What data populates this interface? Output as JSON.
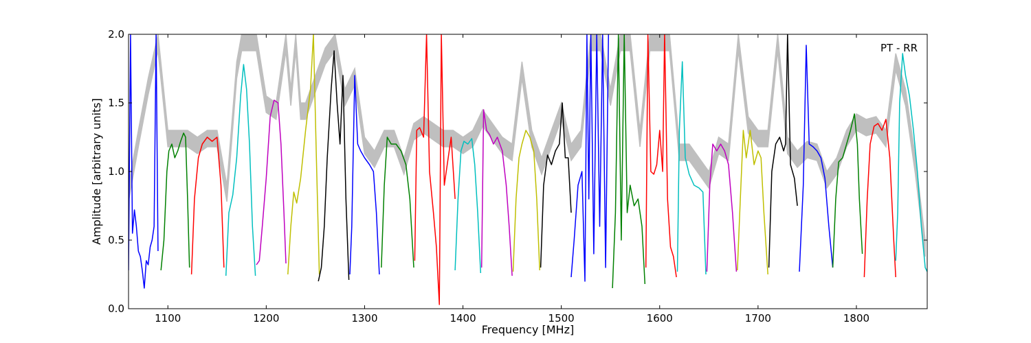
{
  "chart_data": {
    "type": "line",
    "title": "",
    "xlabel": "Frequency [MHz]",
    "ylabel": "Amplitude [arbitrary units]",
    "annotation": "PT - RR",
    "annotation_position": "top-right",
    "xlim": [
      1060,
      1872
    ],
    "ylim": [
      0.0,
      2.0
    ],
    "xticks": [
      1100,
      1200,
      1300,
      1400,
      1500,
      1600,
      1700,
      1800
    ],
    "yticks": [
      0.0,
      0.5,
      1.0,
      1.5,
      2.0
    ],
    "xtick_labels": [
      "1100",
      "1200",
      "1300",
      "1400",
      "1500",
      "1600",
      "1700",
      "1800"
    ],
    "ytick_labels": [
      "0.0",
      "0.5",
      "1.0",
      "1.5",
      "2.0"
    ],
    "grid": false,
    "legend": "none",
    "background_band_color": "#bfbfbf",
    "series": [
      {
        "color": "#0000ff",
        "x": [
          1060,
          1062,
          1064,
          1066,
          1068,
          1070,
          1072,
          1074,
          1076,
          1078,
          1080,
          1082,
          1084,
          1086,
          1088,
          1090
        ],
        "y": [
          0.28,
          2.0,
          0.55,
          0.72,
          0.6,
          0.42,
          0.38,
          0.28,
          0.15,
          0.35,
          0.32,
          0.45,
          0.5,
          0.6,
          2.0,
          0.42
        ]
      },
      {
        "color": "#008000",
        "x": [
          1093,
          1096,
          1099,
          1101,
          1104,
          1107,
          1110,
          1113,
          1116,
          1118,
          1120,
          1122
        ],
        "y": [
          0.28,
          0.5,
          1.0,
          1.15,
          1.2,
          1.1,
          1.15,
          1.22,
          1.28,
          1.25,
          0.8,
          0.3
        ]
      },
      {
        "color": "#ff0000",
        "x": [
          1124,
          1127,
          1131,
          1135,
          1140,
          1145,
          1150,
          1154,
          1157
        ],
        "y": [
          0.25,
          0.8,
          1.1,
          1.2,
          1.25,
          1.22,
          1.25,
          0.9,
          0.3
        ]
      },
      {
        "color": "#00bfbf",
        "x": [
          1159,
          1162,
          1166,
          1170,
          1174,
          1177,
          1180,
          1183,
          1186,
          1189
        ],
        "y": [
          0.24,
          0.7,
          0.83,
          1.1,
          1.55,
          1.78,
          1.6,
          1.2,
          0.6,
          0.24
        ]
      },
      {
        "color": "#bf00bf",
        "x": [
          1190,
          1193,
          1196,
          1200,
          1204,
          1208,
          1212,
          1215,
          1218,
          1220
        ],
        "y": [
          0.32,
          0.35,
          0.6,
          0.95,
          1.4,
          1.52,
          1.5,
          1.2,
          0.7,
          0.33
        ]
      },
      {
        "color": "#bfbf00",
        "x": [
          1222,
          1225,
          1228,
          1231,
          1235,
          1240,
          1245,
          1248,
          1251,
          1254
        ],
        "y": [
          0.25,
          0.6,
          0.85,
          0.77,
          0.95,
          1.3,
          1.6,
          2.0,
          1.1,
          0.25
        ]
      },
      {
        "color": "#000000",
        "x": [
          1253,
          1256,
          1259,
          1262,
          1266,
          1269,
          1272,
          1275,
          1278,
          1281,
          1284
        ],
        "y": [
          0.2,
          0.3,
          0.6,
          1.1,
          1.6,
          1.88,
          1.5,
          1.2,
          1.7,
          0.8,
          0.21
        ]
      },
      {
        "color": "#0000ff",
        "x": [
          1285,
          1287,
          1290,
          1293,
          1296,
          1300,
          1305,
          1309,
          1312,
          1315
        ],
        "y": [
          0.25,
          0.6,
          1.7,
          1.2,
          1.15,
          1.1,
          1.05,
          1.0,
          0.7,
          0.25
        ]
      },
      {
        "color": "#008000",
        "x": [
          1317,
          1320,
          1323,
          1327,
          1332,
          1337,
          1342,
          1346,
          1350
        ],
        "y": [
          0.3,
          0.9,
          1.25,
          1.2,
          1.2,
          1.15,
          1.05,
          0.8,
          0.3
        ]
      },
      {
        "color": "#ff0000",
        "x": [
          1351,
          1353,
          1356,
          1360,
          1363,
          1366,
          1370,
          1373,
          1376,
          1378,
          1381,
          1385,
          1388,
          1392
        ],
        "y": [
          0.35,
          1.3,
          1.32,
          1.25,
          2.0,
          1.0,
          0.7,
          0.45,
          0.03,
          2.0,
          0.9,
          1.1,
          1.25,
          0.8
        ]
      },
      {
        "color": "#00bfbf",
        "x": [
          1392,
          1395,
          1398,
          1401,
          1405,
          1409,
          1412,
          1415,
          1418
        ],
        "y": [
          0.28,
          0.8,
          1.15,
          1.22,
          1.2,
          1.24,
          1.05,
          0.7,
          0.26
        ]
      },
      {
        "color": "#bf00bf",
        "x": [
          1419,
          1421,
          1424,
          1427,
          1431,
          1435,
          1440,
          1444,
          1447,
          1450
        ],
        "y": [
          0.3,
          1.45,
          1.3,
          1.27,
          1.2,
          1.25,
          1.15,
          0.9,
          0.6,
          0.24
        ]
      },
      {
        "color": "#bfbf00",
        "x": [
          1451,
          1454,
          1457,
          1460,
          1464,
          1468,
          1472,
          1475,
          1478
        ],
        "y": [
          0.27,
          0.8,
          1.1,
          1.2,
          1.3,
          1.25,
          1.15,
          0.8,
          0.28
        ]
      },
      {
        "color": "#000000",
        "x": [
          1479,
          1482,
          1486,
          1490,
          1494,
          1498,
          1501,
          1504,
          1507,
          1510
        ],
        "y": [
          0.3,
          0.9,
          1.12,
          1.05,
          1.15,
          1.2,
          1.5,
          1.1,
          1.1,
          0.7
        ]
      },
      {
        "color": "#0000ff",
        "x": [
          1510,
          1513,
          1517,
          1521,
          1524,
          1526,
          1528,
          1530,
          1533,
          1536,
          1539,
          1542,
          1545,
          1548
        ],
        "y": [
          0.23,
          0.5,
          0.9,
          1.0,
          0.2,
          2.0,
          0.8,
          2.0,
          0.4,
          2.0,
          0.6,
          2.0,
          0.3,
          2.0
        ]
      },
      {
        "color": "#008000",
        "x": [
          1552,
          1555,
          1558,
          1561,
          1564,
          1567,
          1570,
          1574,
          1578,
          1582,
          1585
        ],
        "y": [
          0.15,
          0.7,
          2.0,
          0.5,
          2.0,
          0.7,
          0.9,
          0.75,
          0.8,
          0.6,
          0.18
        ]
      },
      {
        "color": "#ff0000",
        "x": [
          1586,
          1588,
          1591,
          1594,
          1597,
          1600,
          1603,
          1605,
          1608,
          1611,
          1614,
          1617
        ],
        "y": [
          0.3,
          2.0,
          1.0,
          0.98,
          1.05,
          1.3,
          1.0,
          2.0,
          0.8,
          0.45,
          0.38,
          0.23
        ]
      },
      {
        "color": "#00bfbf",
        "x": [
          1618,
          1620,
          1623,
          1626,
          1630,
          1635,
          1640,
          1644,
          1647
        ],
        "y": [
          0.27,
          1.3,
          1.8,
          1.1,
          0.98,
          0.9,
          0.88,
          0.85,
          0.25
        ]
      },
      {
        "color": "#bf00bf",
        "x": [
          1648,
          1651,
          1654,
          1658,
          1662,
          1666,
          1670,
          1674,
          1678
        ],
        "y": [
          0.27,
          0.9,
          1.2,
          1.15,
          1.2,
          1.15,
          1.05,
          0.7,
          0.27
        ]
      },
      {
        "color": "#bfbf00",
        "x": [
          1679,
          1682,
          1685,
          1688,
          1692,
          1696,
          1700,
          1703,
          1706,
          1710
        ],
        "y": [
          0.28,
          0.8,
          1.3,
          1.1,
          1.3,
          1.05,
          1.15,
          1.1,
          0.7,
          0.25
        ]
      },
      {
        "color": "#000000",
        "x": [
          1711,
          1714,
          1718,
          1722,
          1726,
          1728,
          1730,
          1733,
          1737,
          1740
        ],
        "y": [
          0.3,
          1.0,
          1.2,
          1.25,
          1.15,
          1.2,
          2.0,
          1.05,
          0.95,
          0.75
        ]
      },
      {
        "color": "#0000ff",
        "x": [
          1742,
          1746,
          1749,
          1752,
          1756,
          1760,
          1764,
          1768,
          1772,
          1776
        ],
        "y": [
          0.27,
          0.9,
          1.92,
          1.2,
          1.18,
          1.15,
          1.1,
          0.95,
          0.6,
          0.3
        ]
      },
      {
        "color": "#008000",
        "x": [
          1776,
          1779,
          1782,
          1786,
          1790,
          1794,
          1798,
          1801,
          1803,
          1806
        ],
        "y": [
          0.3,
          0.8,
          1.07,
          1.1,
          1.2,
          1.3,
          1.42,
          1.2,
          0.8,
          0.4
        ]
      },
      {
        "color": "#ff0000",
        "x": [
          1808,
          1811,
          1814,
          1818,
          1822,
          1826,
          1830,
          1834,
          1838,
          1840
        ],
        "y": [
          0.23,
          0.8,
          1.2,
          1.33,
          1.35,
          1.3,
          1.38,
          1.1,
          0.5,
          0.23
        ]
      },
      {
        "color": "#00bfbf",
        "x": [
          1840,
          1842,
          1844,
          1847,
          1850,
          1854,
          1858,
          1862,
          1866,
          1870,
          1872
        ],
        "y": [
          0.35,
          0.7,
          1.5,
          1.86,
          1.7,
          1.55,
          1.3,
          1.0,
          0.6,
          0.3,
          0.27
        ]
      }
    ],
    "background_band": {
      "x": [
        1060,
        1070,
        1080,
        1090,
        1100,
        1110,
        1120,
        1130,
        1140,
        1150,
        1160,
        1170,
        1175,
        1180,
        1190,
        1200,
        1210,
        1220,
        1225,
        1230,
        1235,
        1240,
        1250,
        1260,
        1270,
        1280,
        1290,
        1300,
        1310,
        1320,
        1330,
        1340,
        1350,
        1360,
        1370,
        1380,
        1390,
        1400,
        1410,
        1420,
        1430,
        1440,
        1450,
        1460,
        1470,
        1480,
        1490,
        1500,
        1510,
        1520,
        1530,
        1540,
        1550,
        1560,
        1570,
        1580,
        1590,
        1600,
        1610,
        1620,
        1630,
        1640,
        1650,
        1660,
        1670,
        1680,
        1690,
        1700,
        1710,
        1720,
        1730,
        1740,
        1750,
        1760,
        1770,
        1780,
        1790,
        1800,
        1810,
        1820,
        1830,
        1840,
        1850,
        1860,
        1870
      ],
      "upper": [
        0.9,
        1.3,
        1.68,
        2.0,
        1.3,
        1.3,
        1.3,
        1.25,
        1.3,
        1.3,
        0.9,
        1.8,
        2.0,
        2.0,
        2.0,
        1.55,
        1.5,
        2.0,
        1.6,
        2.0,
        1.5,
        1.5,
        1.7,
        1.9,
        2.0,
        1.6,
        1.75,
        1.25,
        1.15,
        1.3,
        1.3,
        1.1,
        1.35,
        1.4,
        1.35,
        1.3,
        1.3,
        1.25,
        1.3,
        1.45,
        1.35,
        1.25,
        1.2,
        1.8,
        1.3,
        1.1,
        1.3,
        1.5,
        1.2,
        1.3,
        2.0,
        2.0,
        1.6,
        2.0,
        2.0,
        1.3,
        2.0,
        2.0,
        2.0,
        1.2,
        1.2,
        1.1,
        1.0,
        1.25,
        1.2,
        2.0,
        1.4,
        1.3,
        1.3,
        2.0,
        1.25,
        1.15,
        1.22,
        1.2,
        1.0,
        1.1,
        1.3,
        1.42,
        1.38,
        1.4,
        1.3,
        1.86,
        1.6,
        1.1,
        0.5
      ]
    }
  }
}
